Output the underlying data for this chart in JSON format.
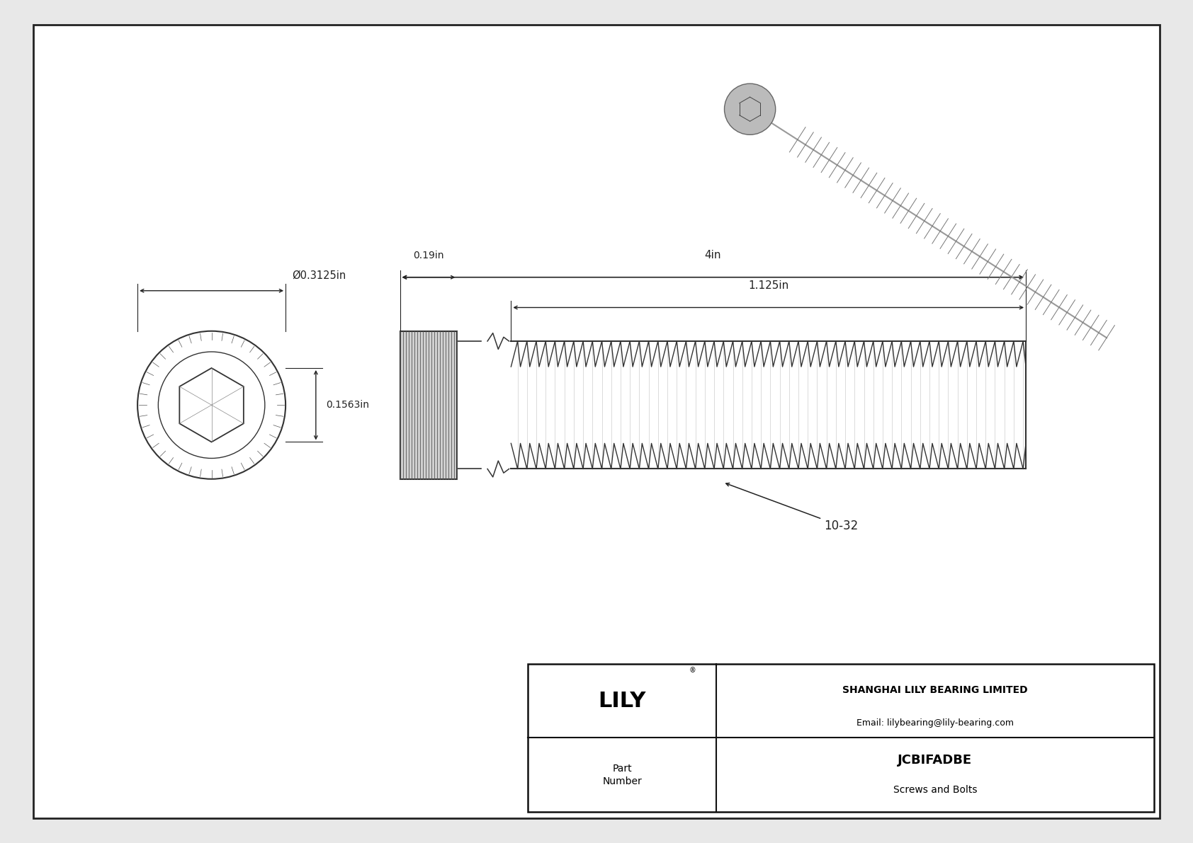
{
  "bg_color": "#e8e8e8",
  "drawing_bg": "#ffffff",
  "border_color": "#222222",
  "line_color": "#333333",
  "dim_color": "#222222",
  "title_company": "SHANGHAI LILY BEARING LIMITED",
  "title_email": "Email: lilybearing@lily-bearing.com",
  "part_number": "JCBIFADBE",
  "part_category": "Screws and Bolts",
  "part_label": "Part\nNumber",
  "logo_text": "LILY",
  "logo_reg": "®",
  "dim_diameter": "Ø0.3125in",
  "dim_height": "0.1563in",
  "dim_head_len": "0.19in",
  "dim_total_len": "4in",
  "dim_thread_len": "1.125in",
  "dim_thread_label": "10-32"
}
